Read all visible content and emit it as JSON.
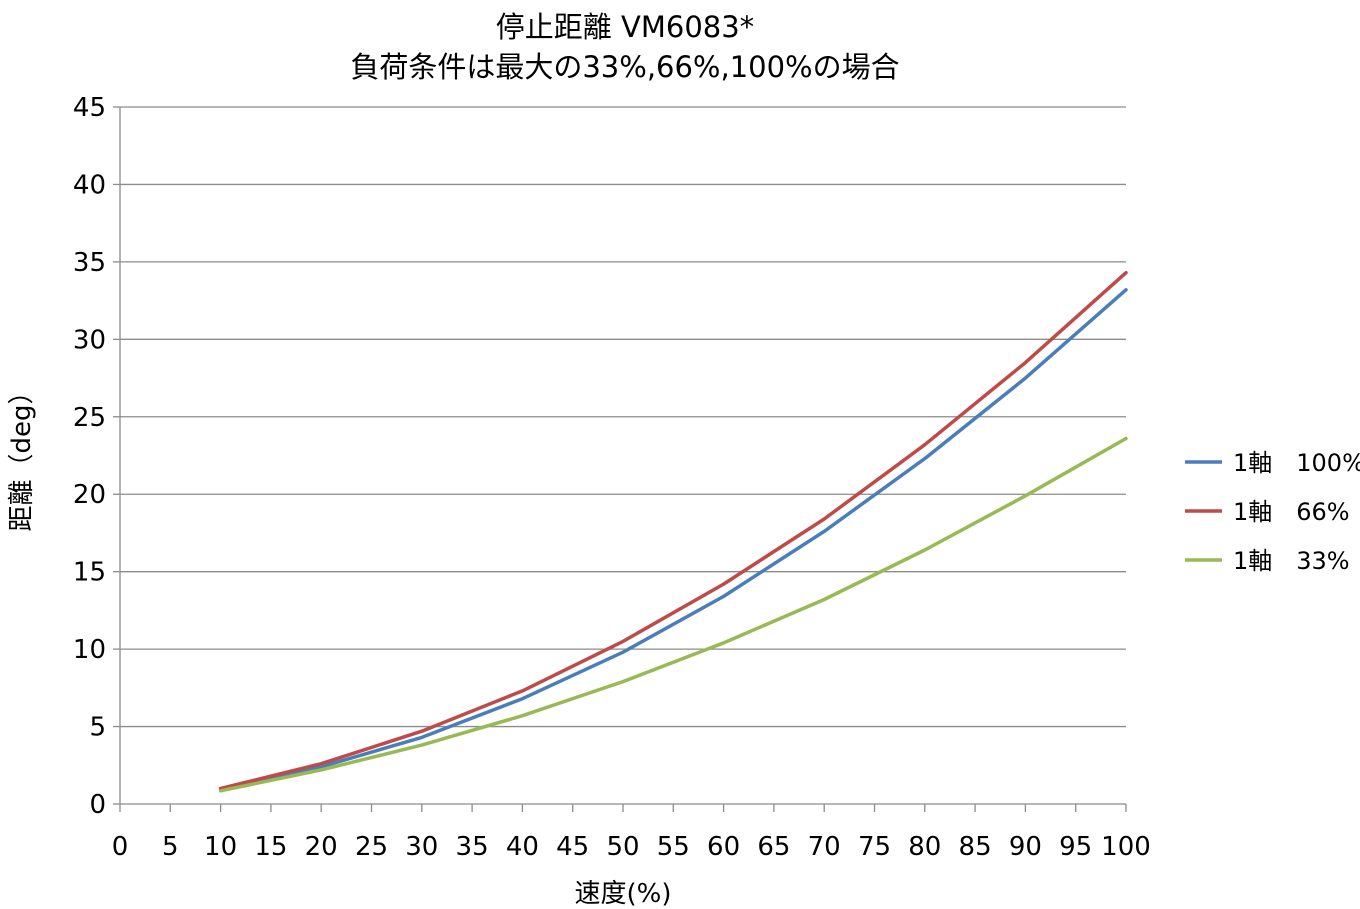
{
  "chart_data": {
    "type": "line",
    "title": "停止距離 VM6083*",
    "subtitle": "負荷条件は最大の33%,66%,100%の場合",
    "xlabel": "速度(%)",
    "ylabel": "距離（deg）",
    "xlim": [
      0,
      100
    ],
    "ylim": [
      0,
      45
    ],
    "x_ticks": [
      "0",
      "5",
      "10",
      "15",
      "20",
      "25",
      "30",
      "35",
      "40",
      "45",
      "50",
      "55",
      "60",
      "65",
      "70",
      "75",
      "80",
      "85",
      "90",
      "95",
      "100"
    ],
    "y_ticks": [
      "0",
      "5",
      "10",
      "15",
      "20",
      "25",
      "30",
      "35",
      "40",
      "45"
    ],
    "grid": "horizontal",
    "legend_position": "right",
    "x": [
      10,
      20,
      30,
      40,
      50,
      60,
      70,
      80,
      90,
      100
    ],
    "series": [
      {
        "name": "1軸　100%",
        "color": "#4a7ebb",
        "values": [
          0.9,
          2.4,
          4.3,
          6.8,
          9.8,
          13.4,
          17.6,
          22.3,
          27.5,
          33.2
        ]
      },
      {
        "name": "1軸　66%",
        "color": "#be4b48",
        "values": [
          1.0,
          2.6,
          4.7,
          7.3,
          10.5,
          14.2,
          18.4,
          23.2,
          28.5,
          34.3
        ]
      },
      {
        "name": "1軸　33%",
        "color": "#98b954",
        "values": [
          0.85,
          2.2,
          3.8,
          5.7,
          7.9,
          10.4,
          13.2,
          16.4,
          19.9,
          23.6
        ]
      }
    ]
  }
}
